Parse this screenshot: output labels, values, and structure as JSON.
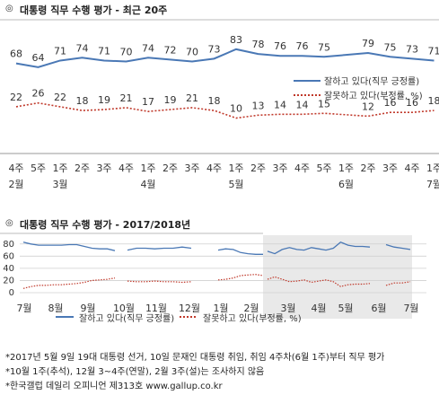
{
  "top": {
    "title": "대통령 직무 수행 평가 - 최근 20주",
    "legend": [
      "잘하고 있다(직무 긍정률)",
      "잘못하고 있다(부정률, %)"
    ]
  },
  "bottom": {
    "title": "대통령 직무 수행 평가 - 2017/2018년",
    "legend": [
      "잘하고 있다(직무 긍정률)",
      "잘못하고 있다(부정률, %)"
    ]
  },
  "footnotes": [
    "*2017년 5월 9일 19대 대통령 선거, 10일 문재인 대통령 취임, 취임 4주차(6월 1주)부터 직무 평가",
    "*10월 1주(추석), 12월 3~4주(연말), 2월 3주(설)는 조사하지 않음",
    "*한국갤럽 데일리 오피니언 제313호 www.gallup.co.kr"
  ],
  "colors": {
    "positive": "#4a78b5",
    "negative": "#c0392b",
    "shade": "#e9e9e9"
  },
  "icons": [
    "circle-bullet-icon"
  ],
  "chart_data": [
    {
      "type": "line",
      "title": "대통령 직무 수행 평가 - 최근 20주",
      "categories": [
        "4주|2월",
        "5주",
        "1주|3월",
        "2주",
        "3주",
        "4주",
        "1주|4월",
        "2주",
        "3주",
        "4주",
        "1주|5월",
        "2주",
        "3주",
        "4주",
        "5주",
        "1주|6월",
        "2주",
        "3주",
        "4주",
        "1주|7월"
      ],
      "series": [
        {
          "name": "잘하고 있다(직무 긍정률)",
          "values": [
            68,
            64,
            71,
            74,
            71,
            70,
            74,
            72,
            70,
            73,
            83,
            78,
            76,
            76,
            75,
            null,
            79,
            75,
            73,
            71
          ]
        },
        {
          "name": "잘못하고 있다(부정률, %)",
          "values": [
            22,
            26,
            22,
            18,
            19,
            21,
            17,
            19,
            21,
            18,
            10,
            13,
            14,
            14,
            15,
            null,
            12,
            16,
            16,
            18
          ]
        }
      ],
      "ylim": [
        0,
        100
      ],
      "legend_position": "right",
      "grid": false
    },
    {
      "type": "line",
      "title": "대통령 직무 수행 평가 - 2017/2018년",
      "x_tick_labels": [
        "7월",
        "8월",
        "9월",
        "10월",
        "11월",
        "12월",
        "1월",
        "2월",
        "3월",
        "4월",
        "5월",
        "6월",
        "7월"
      ],
      "y_ticks": [
        0,
        20,
        40,
        60,
        80
      ],
      "ylim": [
        0,
        90
      ],
      "grid": true,
      "shaded_region": "최근 20주",
      "segments": [
        {
          "series": "잘하고 있다(직무 긍정률)",
          "values": [
            83,
            80,
            78,
            78,
            78,
            78,
            79,
            79,
            76,
            73,
            72,
            72,
            69
          ]
        },
        {
          "series": "잘하고 있다(직무 긍정률)",
          "values": [
            70,
            73,
            73,
            72,
            73,
            73,
            75,
            73
          ]
        },
        {
          "series": "잘하고 있다(직무 긍정률)",
          "values": [
            70,
            72,
            71,
            66,
            64,
            63,
            63
          ]
        },
        {
          "series": "잘하고 있다(직무 긍정률)",
          "values": [
            68,
            64,
            71,
            74,
            71,
            70,
            74,
            72,
            70,
            73,
            83,
            78,
            76,
            76,
            75
          ]
        },
        {
          "series": "잘하고 있다(직무 긍정률)",
          "values": [
            79,
            75,
            73,
            71
          ]
        },
        {
          "series": "잘못하고 있다(부정률, %)",
          "values": [
            7,
            10,
            12,
            12,
            13,
            13,
            14,
            15,
            17,
            20,
            21,
            22,
            24
          ]
        },
        {
          "series": "잘못하고 있다(부정률, %)",
          "values": [
            19,
            18,
            18,
            19,
            18,
            18,
            17,
            18
          ]
        },
        {
          "series": "잘못하고 있다(부정률, %)",
          "values": [
            21,
            22,
            24,
            28,
            29,
            30,
            28
          ]
        },
        {
          "series": "잘못하고 있다(부정률, %)",
          "values": [
            22,
            26,
            22,
            18,
            19,
            21,
            17,
            19,
            21,
            18,
            10,
            13,
            14,
            14,
            15
          ]
        },
        {
          "series": "잘못하고 있다(부정률, %)",
          "values": [
            12,
            16,
            16,
            18
          ]
        }
      ],
      "legend_position": "bottom"
    }
  ]
}
